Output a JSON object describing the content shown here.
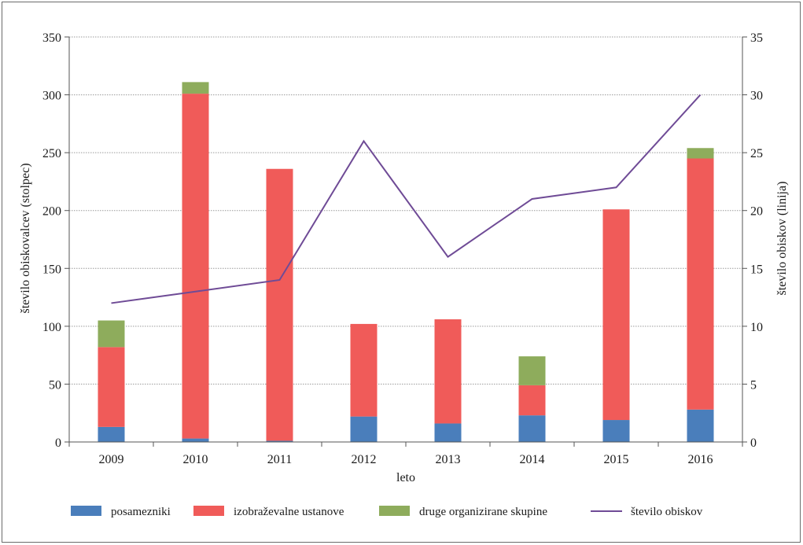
{
  "chart_data": {
    "type": "bar",
    "stacked": true,
    "categories": [
      "2009",
      "2010",
      "2011",
      "2012",
      "2013",
      "2014",
      "2015",
      "2016"
    ],
    "series": [
      {
        "name": "posamezniki",
        "color": "#4a7ebb",
        "values": [
          13,
          3,
          1,
          22,
          16,
          23,
          19,
          28
        ]
      },
      {
        "name": "izobraževalne ustanove",
        "color": "#f05b59",
        "values": [
          69,
          298,
          235,
          80,
          90,
          26,
          182,
          217
        ]
      },
      {
        "name": "druge organizirane skupine",
        "color": "#8eac5c",
        "values": [
          23,
          10,
          0,
          0,
          0,
          25,
          0,
          9
        ]
      }
    ],
    "line_series": {
      "name": "število obiskov",
      "color": "#6f4b96",
      "values": [
        12,
        13,
        14,
        26,
        16,
        21,
        22,
        30
      ]
    },
    "xlabel": "leto",
    "ylabel": "število obiskovalcev (stolpec)",
    "y2label": "število obiskov (linija)",
    "ylim": [
      0,
      350
    ],
    "y2lim": [
      0,
      35
    ],
    "yticks": [
      "0",
      "50",
      "100",
      "150",
      "200",
      "250",
      "300",
      "350"
    ],
    "y2ticks": [
      "0",
      "5",
      "10",
      "15",
      "20",
      "25",
      "30",
      "35"
    ],
    "grid": true,
    "legend_position": "bottom"
  }
}
